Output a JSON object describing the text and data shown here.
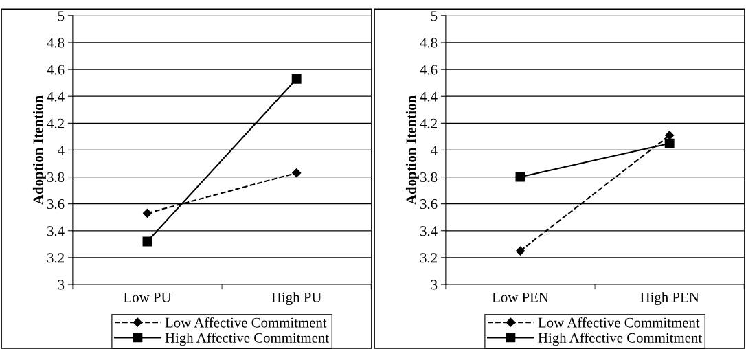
{
  "chart_data": [
    {
      "type": "line",
      "ylabel": "Adoption Itention",
      "categories": [
        "Low PU",
        "High PU"
      ],
      "ylim": [
        3,
        5
      ],
      "yticks": [
        3,
        3.2,
        3.4,
        3.6,
        3.8,
        4,
        4.2,
        4.4,
        4.6,
        4.8,
        5
      ],
      "grid": "y",
      "legend": "bottom",
      "series": [
        {
          "name": "Low Affective Commitment",
          "color": "#000000",
          "values": [
            3.53,
            3.83
          ],
          "marker": "diamond",
          "line_style": "dashed"
        },
        {
          "name": "High Affective Commitment",
          "color": "#000000",
          "values": [
            3.32,
            4.53
          ],
          "marker": "square",
          "line_style": "solid"
        }
      ]
    },
    {
      "type": "line",
      "ylabel": "Adoption Itention",
      "categories": [
        "Low PEN",
        "High PEN"
      ],
      "ylim": [
        3,
        5
      ],
      "yticks": [
        3,
        3.2,
        3.4,
        3.6,
        3.8,
        4,
        4.2,
        4.4,
        4.6,
        4.8,
        5
      ],
      "grid": "y",
      "legend": "bottom",
      "series": [
        {
          "name": "Low Affective Commitment",
          "color": "#000000",
          "values": [
            3.25,
            4.11
          ],
          "marker": "diamond",
          "line_style": "dashed"
        },
        {
          "name": "High Affective Commitment",
          "color": "#000000",
          "values": [
            3.8,
            4.05
          ],
          "marker": "square",
          "line_style": "solid"
        }
      ]
    }
  ]
}
